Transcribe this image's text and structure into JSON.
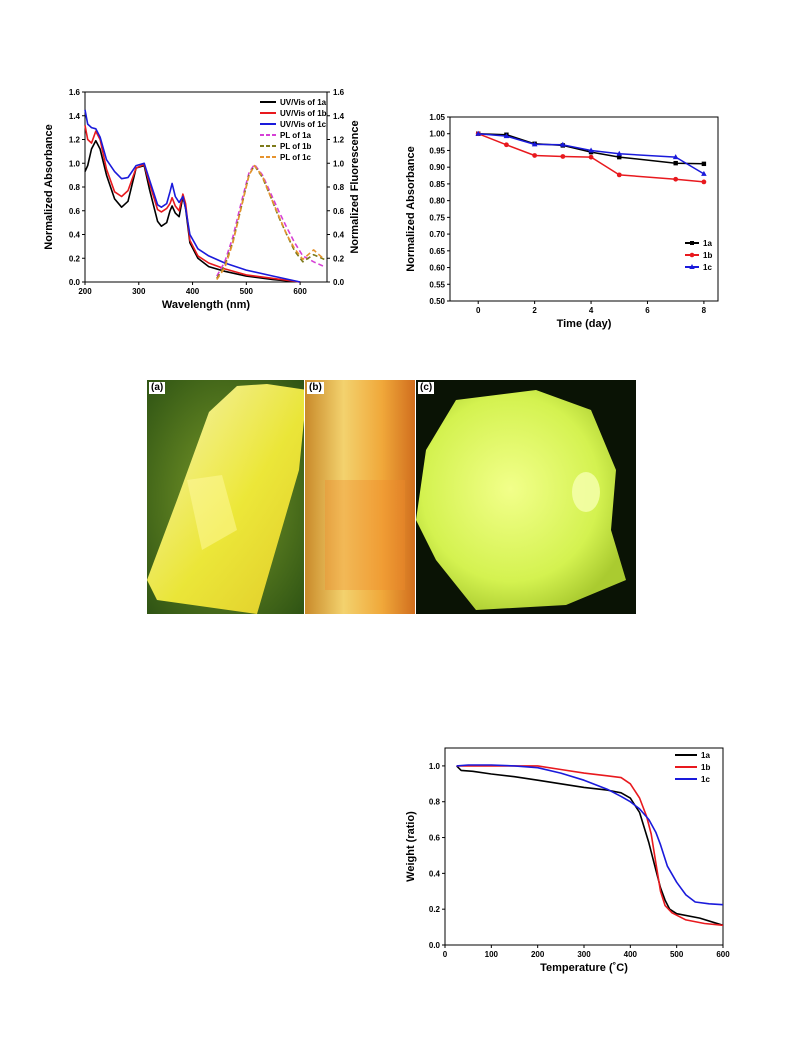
{
  "chart_data": [
    {
      "type": "line",
      "xlabel": "Wavelength (nm)",
      "ylabel": "Normalized Absorbance",
      "ylabel_right": "Normalized Fluorescence",
      "xlim": [
        200,
        650
      ],
      "ylim": [
        0,
        1.6
      ],
      "ylim_right": [
        0,
        1.6
      ],
      "xticks": [
        200,
        300,
        400,
        500,
        600
      ],
      "yticks": [
        0.0,
        0.2,
        0.4,
        0.6,
        0.8,
        1.0,
        1.2,
        1.4,
        1.6
      ],
      "yticks_right": [
        0.0,
        0.2,
        0.4,
        0.6,
        0.8,
        1.0,
        1.2,
        1.4,
        1.6
      ],
      "legend_position": "top-right",
      "series": [
        {
          "name": "UV/Vis of 1a",
          "color": "#000000",
          "dash": false,
          "x": [
            200,
            205,
            212,
            220,
            228,
            240,
            255,
            268,
            280,
            295,
            310,
            320,
            335,
            342,
            352,
            358,
            362,
            368,
            375,
            382,
            387,
            395,
            410,
            430,
            460,
            500,
            550,
            600
          ],
          "y": [
            0.93,
            0.98,
            1.12,
            1.19,
            1.12,
            0.9,
            0.7,
            0.63,
            0.68,
            0.96,
            0.98,
            0.78,
            0.51,
            0.47,
            0.5,
            0.6,
            0.64,
            0.58,
            0.55,
            0.72,
            0.62,
            0.33,
            0.2,
            0.13,
            0.09,
            0.05,
            0.02,
            0.0
          ]
        },
        {
          "name": "UV/Vis of 1b",
          "color": "#e8191e",
          "dash": false,
          "x": [
            200,
            205,
            212,
            220,
            228,
            240,
            255,
            268,
            280,
            295,
            310,
            320,
            335,
            342,
            352,
            358,
            362,
            368,
            375,
            382,
            387,
            395,
            410,
            430,
            460,
            500,
            550,
            600
          ],
          "y": [
            1.32,
            1.2,
            1.17,
            1.27,
            1.2,
            0.95,
            0.76,
            0.72,
            0.77,
            0.96,
            0.99,
            0.83,
            0.61,
            0.59,
            0.62,
            0.66,
            0.71,
            0.64,
            0.6,
            0.74,
            0.66,
            0.35,
            0.22,
            0.16,
            0.11,
            0.06,
            0.03,
            0.0
          ]
        },
        {
          "name": "UV/Vis of 1c",
          "color": "#1a1adb",
          "dash": false,
          "x": [
            200,
            205,
            212,
            220,
            228,
            240,
            255,
            268,
            280,
            295,
            310,
            320,
            335,
            342,
            352,
            358,
            362,
            368,
            375,
            382,
            387,
            395,
            410,
            430,
            460,
            500,
            550,
            600
          ],
          "y": [
            1.45,
            1.33,
            1.3,
            1.29,
            1.22,
            1.03,
            0.93,
            0.87,
            0.88,
            0.98,
            1.0,
            0.86,
            0.65,
            0.63,
            0.66,
            0.76,
            0.83,
            0.72,
            0.67,
            0.72,
            0.62,
            0.4,
            0.28,
            0.22,
            0.16,
            0.1,
            0.05,
            0.0
          ]
        },
        {
          "name": "PL of 1a",
          "color": "#d640d6",
          "dash": true,
          "x": [
            445,
            460,
            475,
            490,
            505,
            515,
            530,
            545,
            560,
            575,
            590,
            605,
            625,
            645
          ],
          "y": [
            0.05,
            0.17,
            0.38,
            0.66,
            0.92,
            0.99,
            0.9,
            0.75,
            0.6,
            0.46,
            0.33,
            0.22,
            0.17,
            0.13
          ]
        },
        {
          "name": "PL of 1b",
          "color": "#7d7a1a",
          "dash": true,
          "x": [
            445,
            460,
            475,
            490,
            505,
            515,
            530,
            545,
            560,
            575,
            590,
            605,
            625,
            645
          ],
          "y": [
            0.03,
            0.14,
            0.34,
            0.62,
            0.9,
            0.98,
            0.88,
            0.72,
            0.55,
            0.4,
            0.26,
            0.17,
            0.23,
            0.19
          ]
        },
        {
          "name": "PL of 1c",
          "color": "#e6932e",
          "dash": true,
          "x": [
            445,
            460,
            475,
            490,
            505,
            515,
            530,
            545,
            560,
            575,
            590,
            605,
            625,
            645
          ],
          "y": [
            0.02,
            0.12,
            0.33,
            0.62,
            0.9,
            0.98,
            0.89,
            0.72,
            0.56,
            0.4,
            0.28,
            0.19,
            0.27,
            0.19
          ]
        }
      ]
    },
    {
      "type": "line",
      "xlabel": "Time (day)",
      "ylabel": "Normalized Absorbance",
      "xlim": [
        -1,
        8.5
      ],
      "ylim": [
        0.5,
        1.05
      ],
      "xticks": [
        0,
        2,
        4,
        6,
        8
      ],
      "yticks": [
        0.5,
        0.55,
        0.6,
        0.65,
        0.7,
        0.75,
        0.8,
        0.85,
        0.9,
        0.95,
        1.0,
        1.05
      ],
      "ytick_labels": [
        "0.50",
        "0.55",
        "0.60",
        "0.65",
        "0.70",
        "0.75",
        "0.80",
        "0.85",
        "0.90",
        "0.95",
        "1.00",
        "1.05"
      ],
      "legend_position": "bottom-right",
      "series": [
        {
          "name": "1a",
          "color": "#000000",
          "marker": "square",
          "x": [
            0,
            1,
            2,
            3,
            4,
            5,
            7,
            8
          ],
          "y": [
            1.0,
            0.997,
            0.97,
            0.965,
            0.945,
            0.93,
            0.912,
            0.91
          ]
        },
        {
          "name": "1b",
          "color": "#e8191e",
          "marker": "circle",
          "x": [
            0,
            1,
            2,
            3,
            4,
            5,
            7,
            8
          ],
          "y": [
            1.0,
            0.967,
            0.935,
            0.932,
            0.93,
            0.877,
            0.864,
            0.856
          ]
        },
        {
          "name": "1c",
          "color": "#1a1adb",
          "marker": "triangle",
          "x": [
            0,
            1,
            2,
            3,
            4,
            5,
            7,
            8
          ],
          "y": [
            1.0,
            0.993,
            0.968,
            0.967,
            0.95,
            0.94,
            0.93,
            0.88
          ]
        }
      ]
    },
    {
      "type": "line",
      "xlabel": "Temperature (˚C)",
      "ylabel": "Weight (ratio)",
      "xlim": [
        0,
        600
      ],
      "ylim": [
        0,
        1.1
      ],
      "xticks": [
        0,
        100,
        200,
        300,
        400,
        500,
        600
      ],
      "yticks": [
        0.0,
        0.2,
        0.4,
        0.6,
        0.8,
        1.0
      ],
      "legend_position": "top-right",
      "series": [
        {
          "name": "1a",
          "color": "#000000",
          "x": [
            25,
            35,
            60,
            100,
            150,
            200,
            250,
            300,
            350,
            380,
            400,
            420,
            440,
            455,
            465,
            475,
            485,
            500,
            550,
            600
          ],
          "y": [
            1.0,
            0.975,
            0.97,
            0.955,
            0.94,
            0.92,
            0.9,
            0.88,
            0.865,
            0.85,
            0.82,
            0.74,
            0.57,
            0.42,
            0.32,
            0.25,
            0.2,
            0.175,
            0.15,
            0.11
          ]
        },
        {
          "name": "1b",
          "color": "#e8191e",
          "x": [
            25,
            50,
            100,
            150,
            200,
            250,
            300,
            350,
            380,
            400,
            420,
            435,
            445,
            455,
            465,
            475,
            490,
            520,
            560,
            600
          ],
          "y": [
            1.0,
            1.0,
            1.0,
            1.0,
            1.0,
            0.98,
            0.96,
            0.945,
            0.935,
            0.9,
            0.82,
            0.72,
            0.62,
            0.46,
            0.3,
            0.22,
            0.18,
            0.14,
            0.12,
            0.11
          ]
        },
        {
          "name": "1c",
          "color": "#1a1adb",
          "x": [
            25,
            50,
            100,
            150,
            200,
            250,
            300,
            350,
            380,
            400,
            420,
            440,
            455,
            465,
            480,
            500,
            520,
            540,
            570,
            600
          ],
          "y": [
            1.0,
            1.005,
            1.005,
            1.0,
            0.99,
            0.96,
            0.92,
            0.87,
            0.83,
            0.8,
            0.76,
            0.7,
            0.63,
            0.56,
            0.44,
            0.35,
            0.28,
            0.24,
            0.23,
            0.225
          ]
        }
      ]
    }
  ],
  "photos": {
    "panels": [
      {
        "label": "(a)",
        "bg": "#3f6d1a",
        "crystal": "#f4ee3a"
      },
      {
        "label": "(b)",
        "bg": "#e8a23a",
        "crystal": "#f7c65a"
      },
      {
        "label": "(c)",
        "bg": "#0b1405",
        "crystal": "#d9f256"
      }
    ]
  }
}
